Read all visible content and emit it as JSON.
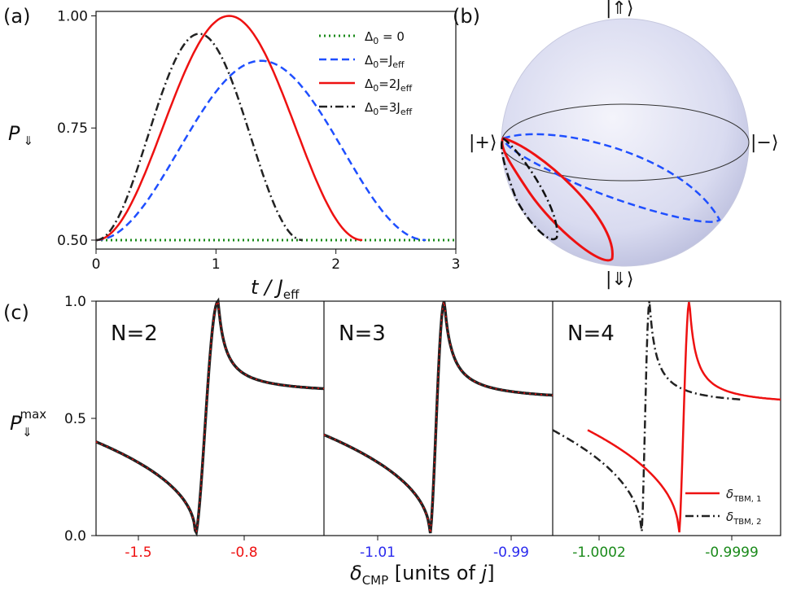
{
  "chart_data": [
    {
      "panel": "(a)",
      "type": "line",
      "xlabel": "t / J_eff",
      "ylabel": "P_⇓",
      "xlim": [
        0,
        3
      ],
      "ylim": [
        0.48,
        1.01
      ],
      "x_ticks": [
        "0",
        "1",
        "2",
        "3"
      ],
      "y_ticks": [
        "0.50",
        "0.75",
        "1.00"
      ],
      "legend_position": "top-right",
      "series": [
        {
          "name": "Δ0 = 0",
          "color": "#1a8a1a",
          "style": "dotted",
          "delta": 0
        },
        {
          "name": "Δ0=Jeff",
          "color": "#1f4fff",
          "style": "dashed",
          "delta": 1
        },
        {
          "name": "Δ0=2Jeff",
          "color": "#ee1111",
          "style": "solid",
          "delta": 2
        },
        {
          "name": "Δ0=3Jeff",
          "color": "#222222",
          "style": "dashdot",
          "delta": 3
        }
      ],
      "labels": {
        "ylabel_main": "P",
        "ylabel_sub": "⇓",
        "xlabel_main": "t / J",
        "xlabel_sub": "eff",
        "legend": [
          {
            "pre": "Δ",
            "sub0": "0",
            "post": " = 0",
            "jsub": ""
          },
          {
            "pre": "Δ",
            "sub0": "0",
            "post": "=J",
            "jsub": "eff"
          },
          {
            "pre": "Δ",
            "sub0": "0",
            "post": "=2J",
            "jsub": "eff"
          },
          {
            "pre": "Δ",
            "sub0": "0",
            "post": "=3J",
            "jsub": "eff"
          }
        ]
      }
    },
    {
      "panel": "(b)",
      "type": "bloch-sphere",
      "state_labels": {
        "top": "|⇑⟩",
        "bottom": "|⇓⟩",
        "left": "|+⟩",
        "right": "|−⟩"
      },
      "trajectories": [
        "Δ0=Jeff",
        "Δ0=2Jeff",
        "Δ0=3Jeff"
      ]
    },
    {
      "panel": "(c)",
      "type": "line",
      "ylabel": "P_⇓^max",
      "xlabel": "δ_CMP [units of j]",
      "ylim": [
        0,
        1
      ],
      "y_ticks": [
        "0.0",
        "0.5",
        "1.0"
      ],
      "labels": {
        "ylabel_main": "P",
        "ylabel_sub": "⇓",
        "ylabel_sup": "max",
        "xlabel_pre": "δ",
        "xlabel_sub": "CMP",
        "xlabel_post": " [units of ",
        "xlabel_j": "j",
        "xlabel_end": "]"
      },
      "subpanels": [
        {
          "title": "N=2",
          "x_ticks": [
            "-1.5",
            "-0.8"
          ],
          "tick_color": "#ee1111",
          "resonance": -1.0
        },
        {
          "title": "N=3",
          "x_ticks": [
            "-1.01",
            "-0.99"
          ],
          "tick_color": "#2a2aee",
          "resonance": -1.0
        },
        {
          "title": "N=4",
          "x_ticks": [
            "-1.0002",
            "-0.9999"
          ],
          "tick_color": "#1a8a1a",
          "resonance": -1.0
        }
      ],
      "series": [
        {
          "name": "δTBM,1",
          "color": "#ee1111",
          "style": "solid"
        },
        {
          "name": "δTBM,2",
          "color": "#222222",
          "style": "dashdot"
        }
      ],
      "legend": [
        {
          "pre": "δ",
          "sub": "TBM, 1"
        },
        {
          "pre": "δ",
          "sub": "TBM, 2"
        }
      ]
    }
  ]
}
